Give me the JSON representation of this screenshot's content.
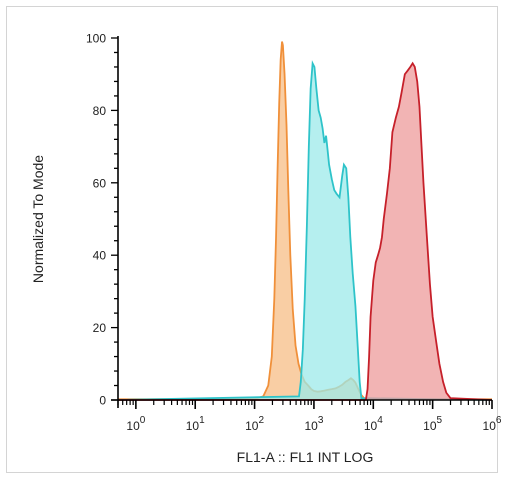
{
  "chart_data": {
    "type": "area",
    "xlabel": "FL1-A :: FL1 INT LOG",
    "ylabel": "Normalized To Mode",
    "x_scale": "log",
    "xlim": [
      0.5,
      1000000
    ],
    "ylim": [
      0,
      100
    ],
    "y_ticks": [
      0,
      20,
      40,
      60,
      80,
      100
    ],
    "x_ticks": [
      {
        "value": 1,
        "base": "10",
        "exp": "0"
      },
      {
        "value": 10,
        "base": "10",
        "exp": "1"
      },
      {
        "value": 100,
        "base": "10",
        "exp": "2"
      },
      {
        "value": 1000,
        "base": "10",
        "exp": "3"
      },
      {
        "value": 10000,
        "base": "10",
        "exp": "4"
      },
      {
        "value": 100000,
        "base": "10",
        "exp": "5"
      },
      {
        "value": 1000000,
        "base": "10",
        "exp": "6"
      }
    ],
    "grid": false,
    "series": [
      {
        "stroke": "#f0903a",
        "fill": "#f7bd86",
        "x": [
          0.5,
          100,
          140,
          170,
          195,
          215,
          230,
          245,
          260,
          275,
          290,
          300,
          320,
          345,
          370,
          400,
          440,
          490,
          550,
          620,
          700,
          800,
          900,
          1000,
          1150,
          1300,
          1500,
          1700,
          2000,
          2300,
          2600,
          3000,
          3400,
          3800,
          4200,
          4600,
          5000,
          5600,
          6200,
          7000,
          8000,
          1000000
        ],
        "y": [
          0.2,
          0.3,
          1,
          4,
          12,
          28,
          45,
          65,
          82,
          94,
          99,
          98,
          90,
          76,
          58,
          40,
          25,
          15,
          10,
          7,
          5,
          4,
          3,
          2.5,
          2.3,
          2.4,
          2.6,
          2.8,
          3,
          3.2,
          3.6,
          4.2,
          5,
          5.5,
          6,
          5.5,
          4.8,
          3,
          1.5,
          0.5,
          0.2,
          0.2
        ]
      },
      {
        "stroke": "#2ec3c9",
        "fill": "#9ceaea",
        "x": [
          0.5,
          560,
          600,
          650,
          700,
          760,
          820,
          880,
          950,
          1020,
          1100,
          1200,
          1300,
          1400,
          1500,
          1600,
          1700,
          1800,
          2000,
          2200,
          2400,
          2700,
          3000,
          3200,
          3500,
          3800,
          4100,
          4500,
          5000,
          5500,
          5900,
          6300,
          1000000
        ],
        "y": [
          0,
          1,
          5,
          14,
          28,
          48,
          70,
          86,
          93,
          92,
          86,
          80,
          78,
          75,
          71,
          73,
          69,
          65,
          61,
          58,
          57,
          56,
          62,
          65,
          64,
          56,
          45,
          35,
          26,
          14,
          5,
          0.5,
          0
        ]
      },
      {
        "stroke": "#c6202a",
        "fill": "#ee9b9b",
        "x": [
          0.5,
          7500,
          8000,
          8500,
          9000,
          10000,
          11000,
          12000,
          13000,
          14000,
          15000,
          17000,
          19000,
          21000,
          24000,
          27000,
          30000,
          34000,
          38000,
          42000,
          46000,
          50000,
          55000,
          60000,
          65000,
          70000,
          80000,
          90000,
          100000,
          115000,
          130000,
          150000,
          170000,
          200000,
          1000000
        ],
        "y": [
          0,
          0,
          3,
          12,
          23,
          33,
          38,
          40,
          42,
          45,
          50,
          57,
          64,
          74,
          78,
          81,
          85,
          90,
          91,
          92,
          93,
          92,
          88,
          81,
          70,
          60,
          45,
          32,
          23,
          16,
          10,
          5,
          2,
          0.5,
          0
        ]
      }
    ]
  }
}
